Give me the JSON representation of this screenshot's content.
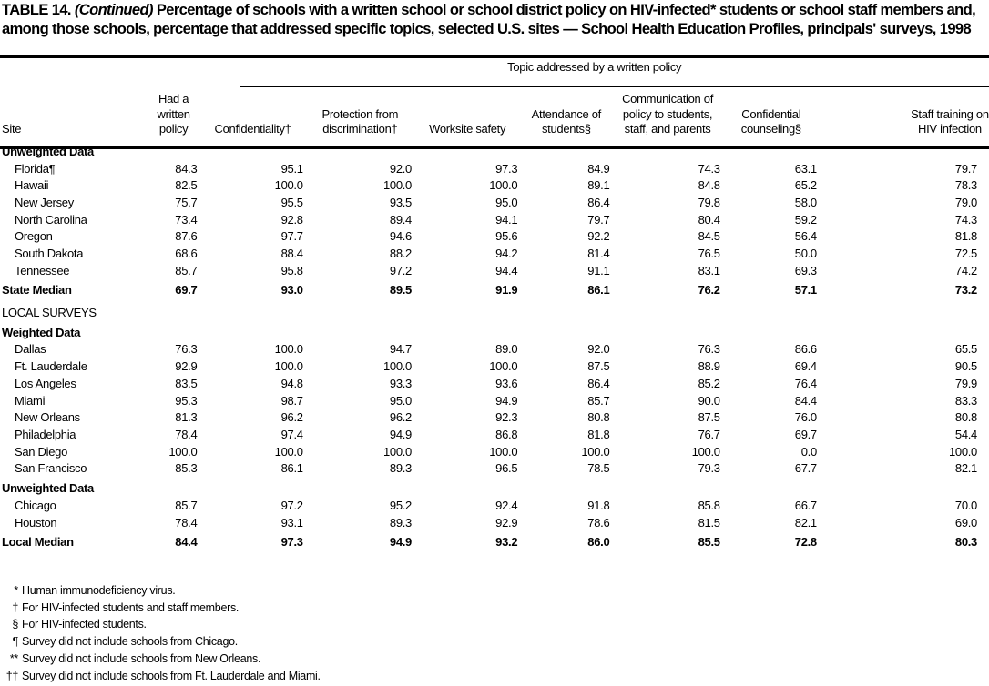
{
  "title": {
    "lead": "TABLE 14.",
    "continued": "(Continued)",
    "text": "Percentage of schools with a written school or school district policy on HIV-infected* students or school staff members and, among those schools, percentage that addressed specific topics, selected U.S. sites — School Health Education Profiles, principals' surveys, 1998"
  },
  "header": {
    "topic_group": "Topic addressed by a written policy",
    "columns": [
      "Site",
      "Had a written policy",
      "Confidentiality†",
      "Protection from discrimination†",
      "Worksite safety",
      "Attendance of students§",
      "Communication of policy to students, staff, and parents",
      "Confidential counseling§",
      "Staff training on HIV infection"
    ]
  },
  "sections": [
    {
      "label": "Unweighted Data",
      "rows": [
        {
          "site": "Florida¶",
          "values": [
            "84.3",
            "95.1",
            "92.0",
            "97.3",
            "84.9",
            "74.3",
            "63.1",
            "79.7"
          ]
        },
        {
          "site": "Hawaii",
          "values": [
            "82.5",
            "100.0",
            "100.0",
            "100.0",
            "89.1",
            "84.8",
            "65.2",
            "78.3"
          ]
        },
        {
          "site": "New Jersey",
          "values": [
            "75.7",
            "95.5",
            "93.5",
            "95.0",
            "86.4",
            "79.8",
            "58.0",
            "79.0"
          ]
        },
        {
          "site": "North Carolina",
          "values": [
            "73.4",
            "92.8",
            "89.4",
            "94.1",
            "79.7",
            "80.4",
            "59.2",
            "74.3"
          ]
        },
        {
          "site": "Oregon",
          "values": [
            "87.6",
            "97.7",
            "94.6",
            "95.6",
            "92.2",
            "84.5",
            "56.4",
            "81.8"
          ]
        },
        {
          "site": "South Dakota",
          "values": [
            "68.6",
            "88.4",
            "88.2",
            "94.2",
            "81.4",
            "76.5",
            "50.0",
            "72.5"
          ]
        },
        {
          "site": "Tennessee",
          "values": [
            "85.7",
            "95.8",
            "97.2",
            "94.4",
            "91.1",
            "83.1",
            "69.3",
            "74.2"
          ]
        }
      ]
    },
    {
      "median": {
        "site": "State Median",
        "values": [
          "69.7",
          "93.0",
          "89.5",
          "91.9",
          "86.1",
          "76.2",
          "57.1",
          "73.2"
        ]
      }
    },
    {
      "label": "LOCAL SURVEYS"
    },
    {
      "label": "Weighted Data",
      "rows": [
        {
          "site": "Dallas",
          "values": [
            "76.3",
            "100.0",
            "94.7",
            "89.0",
            "92.0",
            "76.3",
            "86.6",
            "65.5"
          ]
        },
        {
          "site": "Ft. Lauderdale",
          "values": [
            "92.9",
            "100.0",
            "100.0",
            "100.0",
            "87.5",
            "88.9",
            "69.4",
            "90.5"
          ]
        },
        {
          "site": "Los Angeles",
          "values": [
            "83.5",
            "94.8",
            "93.3",
            "93.6",
            "86.4",
            "85.2",
            "76.4",
            "79.9"
          ]
        },
        {
          "site": "Miami",
          "values": [
            "95.3",
            "98.7",
            "95.0",
            "94.9",
            "85.7",
            "90.0",
            "84.4",
            "83.3"
          ]
        },
        {
          "site": "New Orleans",
          "values": [
            "81.3",
            "96.2",
            "96.2",
            "92.3",
            "80.8",
            "87.5",
            "76.0",
            "80.8"
          ]
        },
        {
          "site": "Philadelphia",
          "values": [
            "78.4",
            "97.4",
            "94.9",
            "86.8",
            "81.8",
            "76.7",
            "69.7",
            "54.4"
          ]
        },
        {
          "site": "San Diego",
          "values": [
            "100.0",
            "100.0",
            "100.0",
            "100.0",
            "100.0",
            "100.0",
            "0.0",
            "100.0"
          ]
        },
        {
          "site": "San Francisco",
          "values": [
            "85.3",
            "86.1",
            "89.3",
            "96.5",
            "78.5",
            "79.3",
            "67.7",
            "82.1"
          ]
        }
      ]
    },
    {
      "label": "Unweighted Data",
      "rows": [
        {
          "site": "Chicago",
          "values": [
            "85.7",
            "97.2",
            "95.2",
            "92.4",
            "91.8",
            "85.8",
            "66.7",
            "70.0"
          ]
        },
        {
          "site": "Houston",
          "values": [
            "78.4",
            "93.1",
            "89.3",
            "92.9",
            "78.6",
            "81.5",
            "82.1",
            "69.0"
          ]
        }
      ]
    },
    {
      "median": {
        "site": "Local Median",
        "values": [
          "84.4",
          "97.3",
          "94.9",
          "93.2",
          "86.0",
          "85.5",
          "72.8",
          "80.3"
        ]
      }
    }
  ],
  "footnotes": [
    {
      "mark": "*",
      "text": "Human immunodeficiency virus."
    },
    {
      "mark": "†",
      "text": "For HIV-infected students and staff members."
    },
    {
      "mark": "§",
      "text": "For HIV-infected students."
    },
    {
      "mark": "¶",
      "text": "Survey did not include schools from Chicago."
    },
    {
      "mark": "**",
      "text": "Survey did not include schools from New Orleans."
    },
    {
      "mark": "††",
      "text": "Survey did not include schools from Ft. Lauderdale and Miami."
    }
  ]
}
